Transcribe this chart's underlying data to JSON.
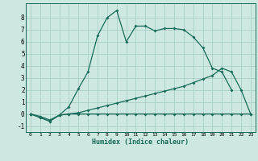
{
  "xlabel": "Humidex (Indice chaleur)",
  "bg_color": "#cce8e0",
  "grid_color": "#aacec6",
  "line_color": "#1a6b5a",
  "xlim": [
    -0.5,
    23.5
  ],
  "ylim": [
    -1.5,
    9.2
  ],
  "line1_x": [
    0,
    1,
    2,
    3,
    4,
    5,
    6,
    7,
    8,
    9,
    10,
    11,
    12,
    13,
    14,
    15,
    16,
    17,
    18,
    19,
    20,
    21
  ],
  "line1_y": [
    0.0,
    -0.3,
    -0.6,
    -0.1,
    0.6,
    2.1,
    3.5,
    6.5,
    8.0,
    8.6,
    6.0,
    7.3,
    7.3,
    6.9,
    7.1,
    7.1,
    7.0,
    6.4,
    5.5,
    3.8,
    3.5,
    2.0
  ],
  "line2_x": [
    0,
    1,
    2,
    3,
    4,
    5,
    6,
    7,
    8,
    9,
    10,
    11,
    12,
    13,
    14,
    15,
    16,
    17,
    18,
    19,
    20,
    21,
    22,
    23
  ],
  "line2_y": [
    0.0,
    -0.3,
    -0.6,
    -0.1,
    0.0,
    0.1,
    0.3,
    0.5,
    0.7,
    0.9,
    1.1,
    1.3,
    1.5,
    1.7,
    1.9,
    2.1,
    2.3,
    2.6,
    2.9,
    3.2,
    3.8,
    3.5,
    2.0,
    0.0
  ],
  "line3_x": [
    0,
    1,
    2,
    3,
    4,
    5,
    6,
    7,
    8,
    9,
    10,
    11,
    12,
    13,
    14,
    15,
    16,
    17,
    18,
    19,
    20,
    21,
    22,
    23
  ],
  "line3_y": [
    0.0,
    -0.2,
    -0.5,
    -0.1,
    0.0,
    0.0,
    0.0,
    0.0,
    0.0,
    0.0,
    0.0,
    0.0,
    0.0,
    0.0,
    0.0,
    0.0,
    0.0,
    0.0,
    0.0,
    0.0,
    0.0,
    0.0,
    0.0,
    0.0
  ],
  "yticks": [
    -1,
    0,
    1,
    2,
    3,
    4,
    5,
    6,
    7,
    8
  ],
  "xticks": [
    0,
    1,
    2,
    3,
    4,
    5,
    6,
    7,
    8,
    9,
    10,
    11,
    12,
    13,
    14,
    15,
    16,
    17,
    18,
    19,
    20,
    21,
    22,
    23
  ]
}
